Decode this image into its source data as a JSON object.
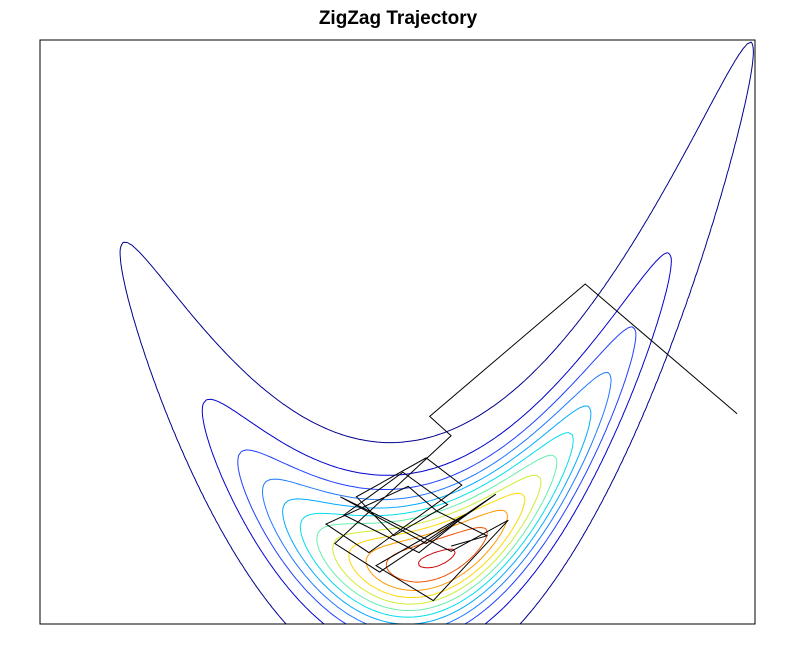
{
  "chart_data": {
    "type": "contour",
    "title": "ZigZag Trajectory",
    "xlabel": "",
    "ylabel": "",
    "axes_visible": false,
    "grid": false,
    "xlim": [
      -2.0,
      2.0
    ],
    "ylim": [
      -0.5,
      4.0
    ],
    "density": {
      "description_of_shape": "banana-shaped (Rosenbrock-like) density: x1 centered near 0.2, x2 following x1 squared",
      "center_x1": 0.22,
      "center_x2": 0.0,
      "sd_x1": 0.52,
      "sd_curve": 0.28,
      "curve_coeff": 1.0
    },
    "contour_levels": 12,
    "contour_colors": [
      "#00008B",
      "#0000CD",
      "#1E3FFF",
      "#1E78FF",
      "#00AAFF",
      "#00DDEE",
      "#66EEAA",
      "#CCEE33",
      "#FFD800",
      "#FF9900",
      "#F05000",
      "#CC0000"
    ],
    "trajectory": {
      "color": "#000000",
      "points": [
        [
          1.9,
          1.12
        ],
        [
          1.05,
          2.12
        ],
        [
          0.18,
          1.1
        ],
        [
          0.3,
          0.95
        ],
        [
          -0.35,
          0.12
        ],
        [
          -0.1,
          -0.1
        ],
        [
          0.55,
          0.5
        ],
        [
          0.16,
          0.12
        ],
        [
          -0.32,
          0.48
        ],
        [
          0.3,
          0.06
        ],
        [
          0.62,
          0.3
        ],
        [
          0.2,
          -0.32
        ],
        [
          -0.12,
          -0.05
        ],
        [
          0.4,
          0.36
        ],
        [
          0.12,
          0.05
        ],
        [
          -0.3,
          0.34
        ],
        [
          0.03,
          0.67
        ],
        [
          0.28,
          0.42
        ],
        [
          -0.02,
          0.18
        ],
        [
          -0.23,
          0.48
        ],
        [
          0.16,
          0.78
        ],
        [
          0.36,
          0.57
        ],
        [
          -0.16,
          0.05
        ],
        [
          -0.4,
          0.27
        ],
        [
          0.06,
          0.56
        ],
        [
          0.22,
          0.37
        ],
        [
          0.5,
          0.18
        ],
        [
          0.3,
          0.1
        ]
      ]
    }
  }
}
